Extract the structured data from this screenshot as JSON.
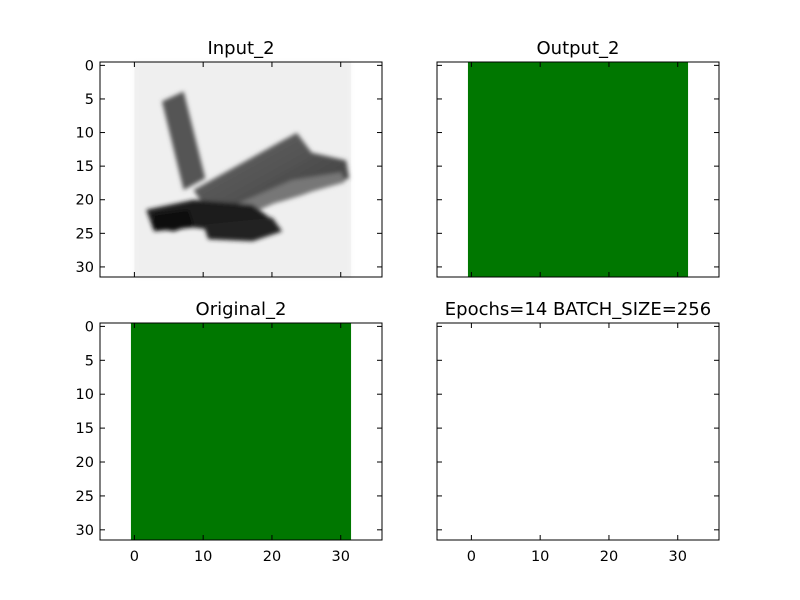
{
  "chart_data": [
    {
      "type": "image",
      "title": "Input_2",
      "image": "grayscale-airplane",
      "xlim": [
        -5,
        36
      ],
      "ylim": [
        31.5,
        -0.5
      ],
      "yticks": [
        0,
        5,
        10,
        15,
        20,
        25,
        30
      ],
      "xticks": [],
      "extent": [
        0,
        31.5
      ]
    },
    {
      "type": "image",
      "title": "Output_2",
      "image": "solid-green",
      "color": "#007700",
      "xlim": [
        -5,
        36
      ],
      "ylim": [
        31.5,
        -0.5
      ],
      "yticks": [],
      "xticks": [],
      "extent": [
        -0.5,
        31.5
      ]
    },
    {
      "type": "image",
      "title": "Original_2",
      "image": "solid-green",
      "color": "#007700",
      "xlim": [
        -5,
        36
      ],
      "ylim": [
        31.5,
        -0.5
      ],
      "yticks": [
        0,
        5,
        10,
        15,
        20,
        25,
        30
      ],
      "xticks": [
        0,
        10,
        20,
        30
      ],
      "extent": [
        -0.5,
        31.5
      ]
    },
    {
      "type": "image",
      "title": "Epochs=14 BATCH_SIZE=256",
      "image": "none",
      "xlim": [
        -5,
        36
      ],
      "ylim": [
        31.5,
        -0.5
      ],
      "yticks": [],
      "xticks": [
        0,
        10,
        20,
        30
      ],
      "extent": null
    }
  ]
}
